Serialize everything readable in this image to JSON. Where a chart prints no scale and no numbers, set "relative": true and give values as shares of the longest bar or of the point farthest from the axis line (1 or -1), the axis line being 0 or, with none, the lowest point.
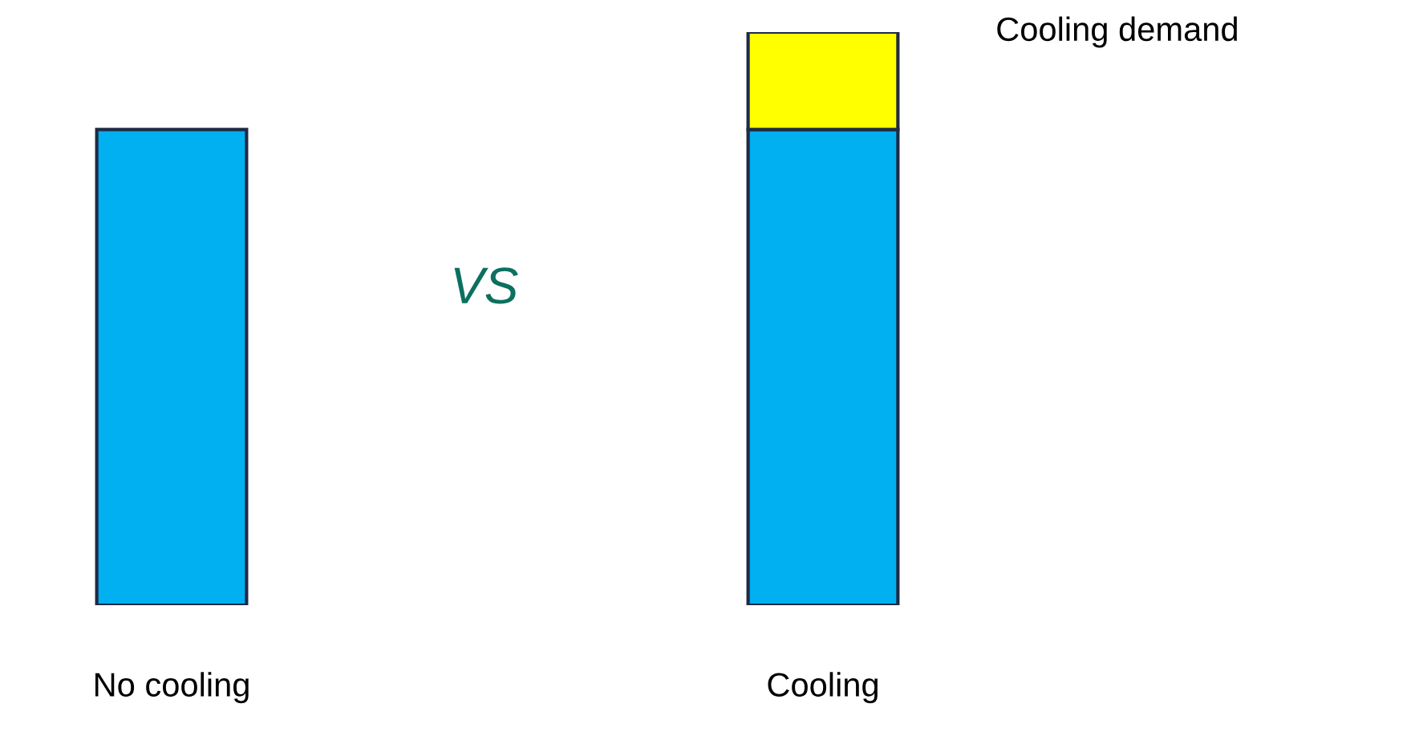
{
  "chart_data": {
    "type": "bar",
    "relative": true,
    "stacked": true,
    "categories": [
      "No cooling",
      "Cooling"
    ],
    "series": [
      {
        "color": "#00b0f0",
        "values": [
          0.83,
          0.83
        ]
      },
      {
        "name": "Cooling demand",
        "color": "#ffff00",
        "values": [
          null,
          0.17
        ]
      }
    ],
    "annotations": [
      "VS"
    ],
    "legend": false,
    "grid": false
  }
}
